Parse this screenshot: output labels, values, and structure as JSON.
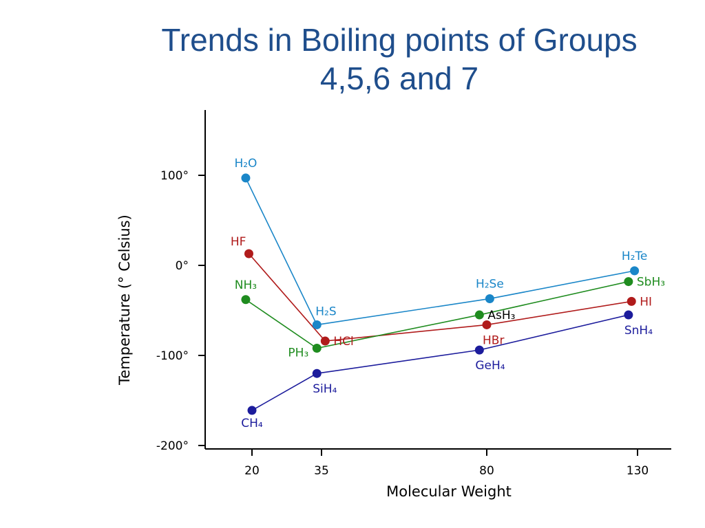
{
  "slide": {
    "title_line1": "Trends in Boiling points of Groups",
    "title_line2": "4,5,6 and 7"
  },
  "chart_data": {
    "type": "line",
    "xlabel": "Molecular Weight",
    "ylabel": "Temperature (° Celsius)",
    "x_ticks": [
      {
        "value": 20,
        "label": "20"
      },
      {
        "value": 35,
        "label": "35"
      },
      {
        "value": 80,
        "label": "80"
      },
      {
        "value": 130,
        "label": "130"
      }
    ],
    "y_ticks": [
      {
        "value": 100,
        "label": "100°"
      },
      {
        "value": 0,
        "label": "0°"
      },
      {
        "value": -100,
        "label": "-100°"
      },
      {
        "value": -200,
        "label": "-200°"
      }
    ],
    "xlim": [
      5,
      140
    ],
    "ylim": [
      -200,
      170
    ],
    "series": [
      {
        "group": "6",
        "color": "#1a86c8",
        "points": [
          {
            "label": "H₂O",
            "x": 18,
            "y": 97,
            "label_pos": "above"
          },
          {
            "label": "H₂S",
            "x": 34,
            "y": -66,
            "label_pos": "above-right"
          },
          {
            "label": "H₂Se",
            "x": 81,
            "y": -37,
            "label_pos": "above"
          },
          {
            "label": "H₂Te",
            "x": 129,
            "y": -6,
            "label_pos": "above"
          }
        ]
      },
      {
        "group": "7",
        "color": "#b01b1b",
        "points": [
          {
            "label": "HF",
            "x": 19,
            "y": 13,
            "label_pos": "above-left"
          },
          {
            "label": "HCl",
            "x": 36,
            "y": -84,
            "label_pos": "right"
          },
          {
            "label": "HBr",
            "x": 80,
            "y": -66,
            "label_pos": "below-right"
          },
          {
            "label": "HI",
            "x": 128,
            "y": -40,
            "label_pos": "right"
          }
        ]
      },
      {
        "group": "5",
        "color": "#1f8c1f",
        "points": [
          {
            "label": "NH₃",
            "x": 18,
            "y": -38,
            "label_pos": "above"
          },
          {
            "label": "PH₃",
            "x": 34,
            "y": -92,
            "label_pos": "left"
          },
          {
            "label": "AsH₃",
            "x": 78,
            "y": -55,
            "label_pos": "right",
            "label_color": "#000000"
          },
          {
            "label": "SbH₃",
            "x": 127,
            "y": -18,
            "label_pos": "right"
          }
        ]
      },
      {
        "group": "4",
        "color": "#1c1c9c",
        "points": [
          {
            "label": "CH₄",
            "x": 20,
            "y": -161,
            "label_pos": "below"
          },
          {
            "label": "SiH₄",
            "x": 34,
            "y": -120,
            "label_pos": "below-right"
          },
          {
            "label": "GeH₄",
            "x": 78,
            "y": -94,
            "label_pos": "below-right"
          },
          {
            "label": "SnH₄",
            "x": 127,
            "y": -55,
            "label_pos": "below-right"
          }
        ]
      }
    ]
  }
}
